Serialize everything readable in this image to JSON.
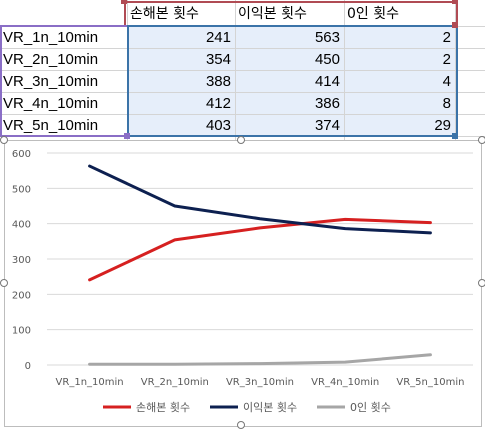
{
  "sheet": {
    "headers": [
      "손해본 횟수",
      "이익본 횟수",
      "0인 횟수"
    ],
    "rows": [
      {
        "label": "VR_1n_10min",
        "values": [
          "241",
          "563",
          "2"
        ]
      },
      {
        "label": "VR_2n_10min",
        "values": [
          "354",
          "450",
          "2"
        ]
      },
      {
        "label": "VR_3n_10min",
        "values": [
          "388",
          "414",
          "4"
        ]
      },
      {
        "label": "VR_4n_10min",
        "values": [
          "412",
          "386",
          "8"
        ]
      },
      {
        "label": "VR_5n_10min",
        "values": [
          "403",
          "374",
          "29"
        ]
      }
    ]
  },
  "chart_data": {
    "type": "line",
    "categories": [
      "VR_1n_10min",
      "VR_2n_10min",
      "VR_3n_10min",
      "VR_4n_10min",
      "VR_5n_10min"
    ],
    "series": [
      {
        "name": "손해본 횟수",
        "values": [
          241,
          354,
          388,
          412,
          403
        ],
        "color": "#d62020"
      },
      {
        "name": "이익본 횟수",
        "values": [
          563,
          450,
          414,
          386,
          374
        ],
        "color": "#0d2050"
      },
      {
        "name": "0인 횟수",
        "values": [
          2,
          2,
          4,
          8,
          29
        ],
        "color": "#a6a6a6"
      }
    ],
    "ylim": [
      0,
      600
    ],
    "yticks": [
      "0",
      "100",
      "200",
      "300",
      "400",
      "500",
      "600"
    ],
    "grid": true,
    "legend": "bottom"
  }
}
